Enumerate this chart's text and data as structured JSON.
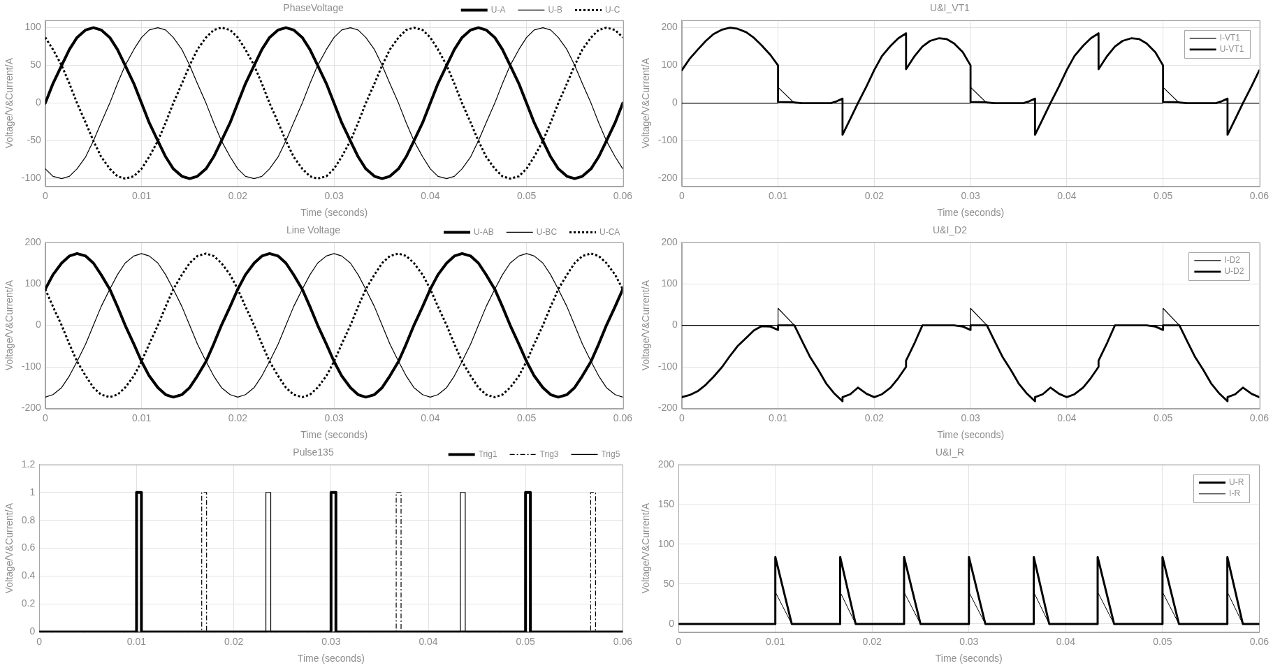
{
  "chart_data": [
    {
      "type": "line",
      "title": "PhaseVoltage",
      "xlabel": "Time (seconds)",
      "ylabel": "Voltage/V&Current/A",
      "xlim": [
        0,
        0.06
      ],
      "xticks": [
        0,
        0.01,
        0.02,
        0.03,
        0.04,
        0.05,
        0.06
      ],
      "ylim": [
        -110,
        110
      ],
      "yticks": [
        -100,
        -50,
        0,
        50,
        100
      ],
      "grid": true,
      "legend": "top right",
      "x": [
        0,
        0.0008,
        0.0017,
        0.0025,
        0.0033,
        0.0042,
        0.005,
        0.0058,
        0.0067,
        0.0075,
        0.0083,
        0.0092,
        0.01,
        0.0108,
        0.0117,
        0.0125,
        0.0133,
        0.0142,
        0.015,
        0.0158,
        0.0167,
        0.0175,
        0.0183,
        0.0192,
        0.02,
        0.0208,
        0.0217,
        0.0225,
        0.0233,
        0.0242,
        0.025,
        0.0258,
        0.0267,
        0.0275,
        0.0283,
        0.0292,
        0.03,
        0.0308,
        0.0317,
        0.0325,
        0.0333,
        0.0342,
        0.035,
        0.0358,
        0.0367,
        0.0375,
        0.0383,
        0.0392,
        0.04,
        0.0408,
        0.0417,
        0.0425,
        0.0433,
        0.0442,
        0.045,
        0.0458,
        0.0467,
        0.0475,
        0.0483,
        0.0492,
        0.05,
        0.0508,
        0.0517,
        0.0525,
        0.0533,
        0.0542,
        0.055,
        0.0558,
        0.0567,
        0.0575,
        0.0583,
        0.0592,
        0.06
      ],
      "series": [
        {
          "name": "U-A",
          "color": "#000000",
          "values": [
            0,
            26,
            50,
            71,
            87,
            97,
            100,
            97,
            87,
            71,
            50,
            26,
            0,
            -26,
            -50,
            -71,
            -87,
            -97,
            -100,
            -97,
            -87,
            -71,
            -50,
            -26,
            0,
            26,
            50,
            71,
            87,
            97,
            100,
            97,
            87,
            71,
            50,
            26,
            0,
            -26,
            -50,
            -71,
            -87,
            -97,
            -100,
            -97,
            -87,
            -71,
            -50,
            -26,
            0,
            26,
            50,
            71,
            87,
            97,
            100,
            97,
            87,
            71,
            50,
            26,
            0,
            -26,
            -50,
            -71,
            -87,
            -97,
            -100,
            -97,
            -87,
            -71,
            -50,
            -26,
            0
          ]
        },
        {
          "name": "U-B",
          "color": "#000000",
          "values": [
            -87,
            -97,
            -100,
            -97,
            -87,
            -71,
            -50,
            -26,
            0,
            26,
            50,
            71,
            87,
            97,
            100,
            97,
            87,
            71,
            50,
            26,
            0,
            -26,
            -50,
            -71,
            -87,
            -97,
            -100,
            -97,
            -87,
            -71,
            -50,
            -26,
            0,
            26,
            50,
            71,
            87,
            97,
            100,
            97,
            87,
            71,
            50,
            26,
            0,
            -26,
            -50,
            -71,
            -87,
            -97,
            -100,
            -97,
            -87,
            -71,
            -50,
            -26,
            0,
            26,
            50,
            71,
            87,
            97,
            100,
            97,
            87,
            71,
            50,
            26,
            0,
            -26,
            -50,
            -71,
            -87
          ]
        },
        {
          "name": "U-C",
          "color": "#000000",
          "line_style": "dotted",
          "values": [
            87,
            71,
            50,
            26,
            0,
            -26,
            -50,
            -71,
            -87,
            -97,
            -100,
            -97,
            -87,
            -71,
            -50,
            -26,
            0,
            26,
            50,
            71,
            87,
            97,
            100,
            97,
            87,
            71,
            50,
            26,
            0,
            -26,
            -50,
            -71,
            -87,
            -97,
            -100,
            -97,
            -87,
            -71,
            -50,
            -26,
            0,
            26,
            50,
            71,
            87,
            97,
            100,
            97,
            87,
            71,
            50,
            26,
            0,
            -26,
            -50,
            -71,
            -87,
            -97,
            -100,
            -97,
            -87,
            -71,
            -50,
            -26,
            0,
            26,
            50,
            71,
            87,
            97,
            100,
            97,
            87
          ]
        }
      ]
    },
    {
      "type": "line",
      "title": "U&I_VT1",
      "xlabel": "Time (seconds)",
      "ylabel": "Voltage/V&Current/A",
      "xlim": [
        0,
        0.06
      ],
      "xticks": [
        0,
        0.01,
        0.02,
        0.03,
        0.04,
        0.05,
        0.06
      ],
      "ylim": [
        -220,
        220
      ],
      "yticks": [
        -200,
        -100,
        0,
        100,
        200
      ],
      "grid": true,
      "legend": "top right",
      "series": [
        {
          "name": "I-VT1",
          "color": "#000000",
          "x": [
            0,
            0.01,
            0.01,
            0.0117,
            0.03,
            0.03,
            0.0317,
            0.05,
            0.05,
            0.0517,
            0.06
          ],
          "values": [
            0,
            0,
            42,
            0,
            0,
            42,
            0,
            0,
            42,
            0,
            0
          ]
        },
        {
          "name": "U-VT1",
          "color": "#000000",
          "x": [
            0,
            0.0008,
            0.0017,
            0.0025,
            0.0033,
            0.0042,
            0.005,
            0.0058,
            0.0067,
            0.0075,
            0.0083,
            0.0092,
            0.01,
            0.01,
            0.0117,
            0.0125,
            0.0155,
            0.016,
            0.0167,
            0.0167,
            0.0175,
            0.0183,
            0.0192,
            0.02,
            0.0208,
            0.0217,
            0.0225,
            0.0233,
            0.0233,
            0.0242,
            0.025,
            0.0258,
            0.0267,
            0.0275,
            0.0283,
            0.0292,
            0.03,
            0.03,
            0.0317,
            0.0325,
            0.0355,
            0.036,
            0.0367,
            0.0367,
            0.0375,
            0.0383,
            0.0392,
            0.04,
            0.0408,
            0.0417,
            0.0425,
            0.0433,
            0.0433,
            0.0442,
            0.045,
            0.0458,
            0.0467,
            0.0475,
            0.0483,
            0.0492,
            0.05,
            0.05,
            0.0517,
            0.0525,
            0.0555,
            0.056,
            0.0567,
            0.0567,
            0.0575,
            0.0583,
            0.0592,
            0.06
          ],
          "values": [
            87,
            117,
            143,
            165,
            183,
            195,
            200,
            197,
            188,
            173,
            153,
            128,
            100,
            3,
            2,
            0,
            0,
            4,
            12,
            -84,
            -42,
            0,
            45,
            88,
            125,
            152,
            172,
            185,
            90,
            125,
            150,
            165,
            172,
            170,
            158,
            135,
            100,
            3,
            2,
            0,
            0,
            4,
            12,
            -84,
            -42,
            0,
            45,
            88,
            125,
            152,
            172,
            185,
            90,
            125,
            150,
            165,
            172,
            170,
            158,
            135,
            100,
            3,
            2,
            0,
            0,
            4,
            12,
            -84,
            -42,
            0,
            45,
            87
          ]
        }
      ]
    },
    {
      "type": "line",
      "title": "Line Voltage",
      "xlabel": "Time (seconds)",
      "ylabel": "Voltage/V&Current/A",
      "xlim": [
        0,
        0.06
      ],
      "xticks": [
        0,
        0.01,
        0.02,
        0.03,
        0.04,
        0.05,
        0.06
      ],
      "ylim": [
        -200,
        200
      ],
      "yticks": [
        -200,
        -100,
        0,
        100,
        200
      ],
      "grid": true,
      "legend": "top right",
      "x": [
        0,
        0.0008,
        0.0017,
        0.0025,
        0.0033,
        0.0042,
        0.005,
        0.0058,
        0.0067,
        0.0075,
        0.0083,
        0.0092,
        0.01,
        0.0108,
        0.0117,
        0.0125,
        0.0133,
        0.0142,
        0.015,
        0.0158,
        0.0167,
        0.0175,
        0.0183,
        0.0192,
        0.02,
        0.0208,
        0.0217,
        0.0225,
        0.0233,
        0.0242,
        0.025,
        0.0258,
        0.0267,
        0.0275,
        0.0283,
        0.0292,
        0.03,
        0.0308,
        0.0317,
        0.0325,
        0.0333,
        0.0342,
        0.035,
        0.0358,
        0.0367,
        0.0375,
        0.0383,
        0.0392,
        0.04,
        0.0408,
        0.0417,
        0.0425,
        0.0433,
        0.0442,
        0.045,
        0.0458,
        0.0467,
        0.0475,
        0.0483,
        0.0492,
        0.05,
        0.0508,
        0.0517,
        0.0525,
        0.0533,
        0.0542,
        0.055,
        0.0558,
        0.0567,
        0.0575,
        0.0583,
        0.0592,
        0.06
      ],
      "series": [
        {
          "name": "U-AB",
          "color": "#000000",
          "values": [
            87,
            122,
            150,
            167,
            173,
            167,
            150,
            122,
            87,
            45,
            0,
            -45,
            -87,
            -122,
            -150,
            -167,
            -173,
            -167,
            -150,
            -122,
            -87,
            -45,
            0,
            45,
            87,
            122,
            150,
            167,
            173,
            167,
            150,
            122,
            87,
            45,
            0,
            -45,
            -87,
            -122,
            -150,
            -167,
            -173,
            -167,
            -150,
            -122,
            -87,
            -45,
            0,
            45,
            87,
            122,
            150,
            167,
            173,
            167,
            150,
            122,
            87,
            45,
            0,
            -45,
            -87,
            -122,
            -150,
            -167,
            -173,
            -167,
            -150,
            -122,
            -87,
            -45,
            0,
            45,
            87
          ]
        },
        {
          "name": "U-BC",
          "color": "#000000",
          "values": [
            -173,
            -167,
            -150,
            -122,
            -87,
            -45,
            0,
            45,
            87,
            122,
            150,
            167,
            173,
            167,
            150,
            122,
            87,
            45,
            0,
            -45,
            -87,
            -122,
            -150,
            -167,
            -173,
            -167,
            -150,
            -122,
            -87,
            -45,
            0,
            45,
            87,
            122,
            150,
            167,
            173,
            167,
            150,
            122,
            87,
            45,
            0,
            -45,
            -87,
            -122,
            -150,
            -167,
            -173,
            -167,
            -150,
            -122,
            -87,
            -45,
            0,
            45,
            87,
            122,
            150,
            167,
            173,
            167,
            150,
            122,
            87,
            45,
            0,
            -45,
            -87,
            -122,
            -150,
            -167,
            -173
          ]
        },
        {
          "name": "U-CA",
          "color": "#000000",
          "line_style": "dotted",
          "values": [
            87,
            45,
            0,
            -45,
            -87,
            -122,
            -150,
            -167,
            -173,
            -167,
            -150,
            -122,
            -87,
            -45,
            0,
            45,
            87,
            122,
            150,
            167,
            173,
            167,
            150,
            122,
            87,
            45,
            0,
            -45,
            -87,
            -122,
            -150,
            -167,
            -173,
            -167,
            -150,
            -122,
            -87,
            -45,
            0,
            45,
            87,
            122,
            150,
            167,
            173,
            167,
            150,
            122,
            87,
            45,
            0,
            -45,
            -87,
            -122,
            -150,
            -167,
            -173,
            -167,
            -150,
            -122,
            -87,
            -45,
            0,
            45,
            87,
            122,
            150,
            167,
            173,
            167,
            150,
            122,
            87
          ]
        }
      ]
    },
    {
      "type": "line",
      "title": "U&I_D2",
      "xlabel": "Time (seconds)",
      "ylabel": "Voltage/V&Current/A",
      "xlim": [
        0,
        0.06
      ],
      "xticks": [
        0,
        0.01,
        0.02,
        0.03,
        0.04,
        0.05,
        0.06
      ],
      "ylim": [
        -200,
        200
      ],
      "yticks": [
        -200,
        -100,
        0,
        100,
        200
      ],
      "grid": true,
      "legend": "top right",
      "series": [
        {
          "name": "I-D2",
          "color": "#000000",
          "x": [
            0,
            0.01,
            0.01,
            0.0117,
            0.03,
            0.03,
            0.0317,
            0.05,
            0.05,
            0.0517,
            0.06
          ],
          "values": [
            0,
            0,
            41,
            0,
            0,
            41,
            0,
            0,
            41,
            0,
            0
          ]
        },
        {
          "name": "U-D2",
          "color": "#000000",
          "x": [
            0,
            0.0008,
            0.0017,
            0.0025,
            0.0033,
            0.0042,
            0.005,
            0.0058,
            0.0067,
            0.0075,
            0.0083,
            0.0092,
            0.01,
            0.01,
            0.0117,
            0.0125,
            0.0133,
            0.0142,
            0.015,
            0.0158,
            0.0167,
            0.0167,
            0.0175,
            0.0183,
            0.0192,
            0.02,
            0.0208,
            0.0217,
            0.0225,
            0.0233,
            0.0233,
            0.0242,
            0.025,
            0.0283,
            0.0292,
            0.03,
            0.03,
            0.0317,
            0.0325,
            0.0333,
            0.0342,
            0.035,
            0.0358,
            0.0367,
            0.0367,
            0.0375,
            0.0383,
            0.0392,
            0.04,
            0.0408,
            0.0417,
            0.0425,
            0.0433,
            0.0433,
            0.0442,
            0.045,
            0.0483,
            0.0492,
            0.05,
            0.05,
            0.0517,
            0.0525,
            0.0533,
            0.0542,
            0.055,
            0.0558,
            0.0567,
            0.0567,
            0.0575,
            0.0583,
            0.0592,
            0.06
          ],
          "values": [
            -173,
            -168,
            -158,
            -143,
            -124,
            -100,
            -74,
            -50,
            -30,
            -12,
            -2,
            -3,
            -11,
            0,
            0,
            -38,
            -75,
            -108,
            -140,
            -163,
            -183,
            -173,
            -166,
            -150,
            -165,
            -173,
            -166,
            -150,
            -127,
            -100,
            -85,
            -42,
            0,
            0,
            -3,
            -11,
            0,
            0,
            -38,
            -75,
            -108,
            -140,
            -163,
            -183,
            -173,
            -166,
            -150,
            -165,
            -173,
            -166,
            -150,
            -127,
            -100,
            -85,
            -42,
            0,
            0,
            -3,
            -11,
            0,
            0,
            -38,
            -75,
            -108,
            -140,
            -163,
            -183,
            -173,
            -166,
            -150,
            -165,
            -173
          ]
        }
      ]
    },
    {
      "type": "line",
      "title": "Pulse135",
      "xlabel": "Time (seconds)",
      "ylabel": "Voltage/V&Current/A",
      "xlim": [
        0,
        0.06
      ],
      "xticks": [
        0,
        0.01,
        0.02,
        0.03,
        0.04,
        0.05,
        0.06
      ],
      "ylim": [
        0,
        1.2
      ],
      "yticks": [
        0,
        0.2,
        0.4,
        0.6,
        0.8,
        1,
        1.2
      ],
      "grid": true,
      "legend": "top right",
      "series": [
        {
          "name": "Trig1",
          "color": "#000000",
          "x": [
            0,
            0.01,
            0.01,
            0.0105,
            0.0105,
            0.03,
            0.03,
            0.0305,
            0.0305,
            0.05,
            0.05,
            0.0505,
            0.0505,
            0.06
          ],
          "values": [
            0,
            0,
            1,
            1,
            0,
            0,
            1,
            1,
            0,
            0,
            1,
            1,
            0,
            0
          ]
        },
        {
          "name": "Trig3",
          "color": "#000000",
          "line_style": "dashed",
          "x": [
            0,
            0.0167,
            0.0167,
            0.0172,
            0.0172,
            0.0367,
            0.0367,
            0.0372,
            0.0372,
            0.0567,
            0.0567,
            0.0572,
            0.0572,
            0.06
          ],
          "values": [
            0,
            0,
            1,
            1,
            0,
            0,
            1,
            1,
            0,
            0,
            1,
            1,
            0,
            0
          ]
        },
        {
          "name": "Trig5",
          "color": "#000000",
          "x": [
            0,
            0.0233,
            0.0233,
            0.0238,
            0.0238,
            0.0433,
            0.0433,
            0.0438,
            0.0438,
            0.06
          ],
          "values": [
            0,
            0,
            1,
            1,
            0,
            0,
            1,
            1,
            0,
            0
          ]
        }
      ]
    },
    {
      "type": "line",
      "title": "U&I_R",
      "xlabel": "Time (seconds)",
      "ylabel": "Voltage/V&Current/A",
      "xlim": [
        0,
        0.06
      ],
      "xticks": [
        0,
        0.01,
        0.02,
        0.03,
        0.04,
        0.05,
        0.06
      ],
      "ylim": [
        -10,
        200
      ],
      "yticks": [
        0,
        50,
        100,
        150,
        200
      ],
      "grid": true,
      "legend": "top right",
      "x": [
        0,
        0.01,
        0.01,
        0.0117,
        0.0167,
        0.0167,
        0.0183,
        0.0233,
        0.0233,
        0.025,
        0.03,
        0.03,
        0.0317,
        0.0367,
        0.0367,
        0.0383,
        0.0433,
        0.0433,
        0.045,
        0.05,
        0.05,
        0.0517,
        0.0567,
        0.0567,
        0.0583,
        0.06
      ],
      "series": [
        {
          "name": "U-R",
          "color": "#000000",
          "values": [
            0,
            0,
            84,
            0,
            0,
            84,
            0,
            0,
            84,
            0,
            0,
            84,
            0,
            0,
            84,
            0,
            0,
            84,
            0,
            0,
            84,
            0,
            0,
            84,
            0,
            0
          ]
        },
        {
          "name": "I-R",
          "color": "#000000",
          "values": [
            0,
            0,
            40,
            0,
            0,
            40,
            0,
            0,
            40,
            0,
            0,
            40,
            0,
            0,
            40,
            0,
            0,
            40,
            0,
            0,
            40,
            0,
            0,
            40,
            0,
            0
          ]
        }
      ]
    }
  ]
}
